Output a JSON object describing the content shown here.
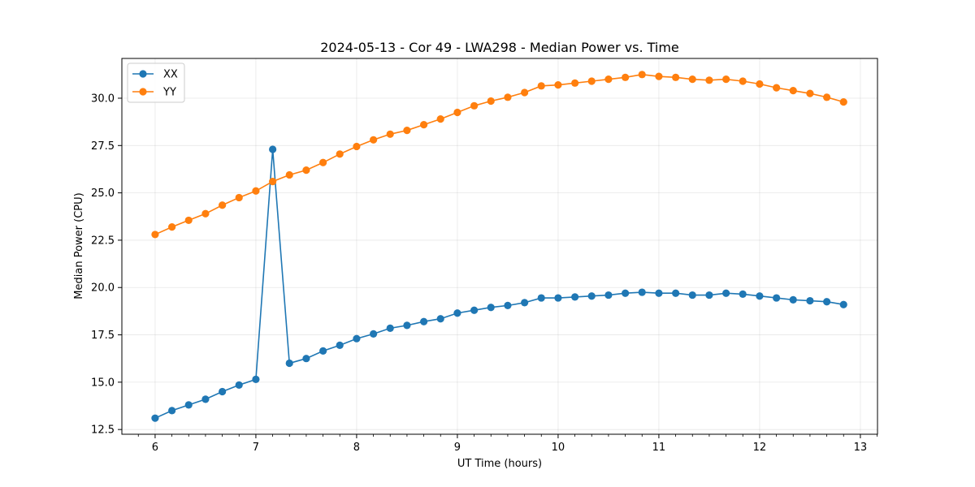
{
  "chart_data": {
    "type": "line",
    "title": "2024-05-13 - Cor 49 - LWA298 - Median Power vs. Time",
    "xlabel": "UT Time (hours)",
    "ylabel": "Median Power (CPU)",
    "xlim": [
      5.67,
      13.17
    ],
    "ylim": [
      12.25,
      32.1
    ],
    "xticks": [
      6,
      7,
      8,
      9,
      10,
      11,
      12,
      13
    ],
    "xtick_labels": [
      "6",
      "7",
      "8",
      "9",
      "10",
      "11",
      "12",
      "13"
    ],
    "yticks": [
      12.5,
      15.0,
      17.5,
      20.0,
      22.5,
      25.0,
      27.5,
      30.0
    ],
    "ytick_labels": [
      "12.5",
      "15.0",
      "17.5",
      "20.0",
      "22.5",
      "25.0",
      "27.5",
      "30.0"
    ],
    "grid": true,
    "legend_position": "top-left",
    "x": [
      6.0,
      6.167,
      6.333,
      6.5,
      6.667,
      6.833,
      7.0,
      7.167,
      7.333,
      7.5,
      7.667,
      7.833,
      8.0,
      8.167,
      8.333,
      8.5,
      8.667,
      8.833,
      9.0,
      9.167,
      9.333,
      9.5,
      9.667,
      9.833,
      10.0,
      10.167,
      10.333,
      10.5,
      10.667,
      10.833,
      11.0,
      11.167,
      11.333,
      11.5,
      11.667,
      11.833,
      12.0,
      12.167,
      12.333,
      12.5,
      12.667,
      12.833
    ],
    "series": [
      {
        "name": "XX",
        "color": "#1f77b4",
        "values": [
          13.1,
          13.5,
          13.8,
          14.1,
          14.5,
          14.85,
          15.15,
          27.3,
          16.0,
          16.25,
          16.65,
          16.95,
          17.3,
          17.55,
          17.85,
          18.0,
          18.2,
          18.35,
          18.65,
          18.8,
          18.95,
          19.05,
          19.2,
          19.45,
          19.45,
          19.5,
          19.55,
          19.6,
          19.7,
          19.75,
          19.7,
          19.7,
          19.6,
          19.6,
          19.7,
          19.65,
          19.55,
          19.45,
          19.35,
          19.3,
          19.25,
          19.1
        ]
      },
      {
        "name": "YY",
        "color": "#ff7f0e",
        "values": [
          22.8,
          23.2,
          23.55,
          23.9,
          24.35,
          24.75,
          25.1,
          25.6,
          25.95,
          26.2,
          26.6,
          27.05,
          27.45,
          27.8,
          28.1,
          28.3,
          28.6,
          28.9,
          29.25,
          29.6,
          29.85,
          30.05,
          30.3,
          30.65,
          30.7,
          30.8,
          30.9,
          31.0,
          31.1,
          31.25,
          31.15,
          31.1,
          31.0,
          30.95,
          31.0,
          30.9,
          30.75,
          30.55,
          30.4,
          30.25,
          30.05,
          29.8
        ]
      }
    ]
  }
}
